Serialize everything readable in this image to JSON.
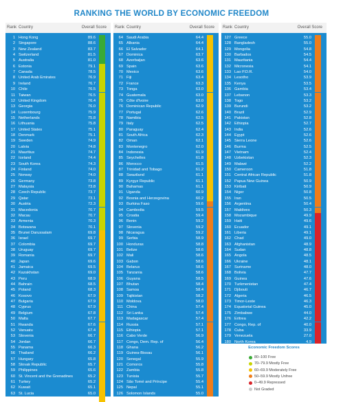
{
  "title": "RANKING THE WORLD BY ECONOMIC FREEDOM",
  "headers": {
    "rank": "Rank",
    "country": "Country",
    "score": "Overall Score"
  },
  "colors": {
    "free": "#3aaa35",
    "mostly_free": "#c8d400",
    "moderately_free": "#f6c200",
    "mostly_unfree": "#ef7d1a",
    "repressed": "#d9232a",
    "not_graded": "#cccccc",
    "panel": "#1b8bd0"
  },
  "legend": {
    "title": "Economic Freedom Scores",
    "items": [
      {
        "label": "80–100  Free",
        "key": "free"
      },
      {
        "label": "70–79.9  Mostly Free",
        "key": "mostly_free"
      },
      {
        "label": "60–69.9  Moderately Free",
        "key": "moderately_free"
      },
      {
        "label": "50–59.9  Mostly Unfree",
        "key": "mostly_unfree"
      },
      {
        "label": "0–49.9  Repressed",
        "key": "repressed"
      },
      {
        "label": "Not Graded",
        "key": "not_graded"
      }
    ]
  },
  "chart_data": {
    "type": "table",
    "title": "RANKING THE WORLD BY ECONOMIC FREEDOM",
    "columns": [
      "Rank",
      "Country",
      "Overall Score"
    ],
    "rows": [
      [
        "1",
        "Hong Kong",
        "89.6"
      ],
      [
        "2",
        "Singapore",
        "88.6"
      ],
      [
        "3",
        "New Zealand",
        "83.7"
      ],
      [
        "4",
        "Switzerland",
        "81.5"
      ],
      [
        "5",
        "Australia",
        "81.0"
      ],
      [
        "6",
        "Estonia",
        "79.1"
      ],
      [
        "7",
        "Canada",
        "78.5"
      ],
      [
        "8",
        "United Arab Emirates",
        "76.9"
      ],
      [
        "9",
        "Ireland",
        "76.7"
      ],
      [
        "10",
        "Chile",
        "76.5"
      ],
      [
        "11",
        "Taiwan",
        "76.5"
      ],
      [
        "12",
        "United Kingdom",
        "76.4"
      ],
      [
        "13",
        "Georgia",
        "76.0"
      ],
      [
        "14",
        "Luxembourg",
        "75.9"
      ],
      [
        "15",
        "Netherlands",
        "75.8"
      ],
      [
        "16",
        "Lithuania",
        "75.8"
      ],
      [
        "17",
        "United States",
        "75.1"
      ],
      [
        "18",
        "Denmark",
        "75.1"
      ],
      [
        "19",
        "Sweden",
        "74.9"
      ],
      [
        "20",
        "Latvia",
        "74.8"
      ],
      [
        "21",
        "Mauritius",
        "74.7"
      ],
      [
        "22",
        "Iceland",
        "74.4"
      ],
      [
        "23",
        "South Korea",
        "74.3"
      ],
      [
        "24",
        "Finland",
        "74.0"
      ],
      [
        "25",
        "Norway",
        "74.0"
      ],
      [
        "26",
        "Germany",
        "73.8"
      ],
      [
        "27",
        "Malaysia",
        "73.8"
      ],
      [
        "28",
        "Czech Republic",
        "73.7"
      ],
      [
        "29",
        "Qatar",
        "73.1"
      ],
      [
        "30",
        "Austria",
        "72.3"
      ],
      [
        "31",
        "Macedonia",
        "70.7"
      ],
      [
        "32",
        "Macau",
        "70.7"
      ],
      [
        "33",
        "Armenia",
        "70.3"
      ],
      [
        "34",
        "Botswana",
        "70.1"
      ],
      [
        "35",
        "Brunei Darussalam",
        "69.8"
      ],
      [
        "36",
        "Israel",
        "69.7"
      ],
      [
        "37",
        "Colombia",
        "69.7"
      ],
      [
        "38",
        "Uruguay",
        "69.7"
      ],
      [
        "39",
        "Romania",
        "69.7"
      ],
      [
        "40",
        "Japan",
        "69.6"
      ],
      [
        "41",
        "Jamaica",
        "69.5"
      ],
      [
        "42",
        "Kazakhstan",
        "69.0"
      ],
      [
        "43",
        "Peru",
        "68.9"
      ],
      [
        "44",
        "Bahrain",
        "68.5"
      ],
      [
        "45",
        "Poland",
        "68.3"
      ],
      [
        "46",
        "Kosovo",
        "67.9"
      ],
      [
        "47",
        "Bulgaria",
        "67.9"
      ],
      [
        "48",
        "Cyprus",
        "67.9"
      ],
      [
        "49",
        "Belgium",
        "67.8"
      ],
      [
        "50",
        "Malta",
        "67.7"
      ],
      [
        "51",
        "Rwanda",
        "67.6"
      ],
      [
        "52",
        "Vanuatu",
        "67.4"
      ],
      [
        "53",
        "Slovenia",
        "66.7"
      ],
      [
        "54",
        "Jordan",
        "66.7"
      ],
      [
        "55",
        "Panama",
        "66.3"
      ],
      [
        "56",
        "Thailand",
        "66.2"
      ],
      [
        "57",
        "Hungary",
        "65.8"
      ],
      [
        "58",
        "Slovak Republic",
        "65.7"
      ],
      [
        "59",
        "Philippines",
        "65.6"
      ],
      [
        "60",
        "St. Vincent and the Grenadines",
        "65.2"
      ],
      [
        "61",
        "Turkey",
        "65.2"
      ],
      [
        "62",
        "Kuwait",
        "65.1"
      ],
      [
        "63",
        "St. Lucia",
        "65.0"
      ],
      [
        "64",
        "Costa Rica",
        "65.0"
      ],
      [
        "64",
        "Saudi Arabia",
        "64.4"
      ],
      [
        "65",
        "Albania",
        "64.4"
      ],
      [
        "66",
        "El Salvador",
        "64.1"
      ],
      [
        "67",
        "Dominica",
        "63.7"
      ],
      [
        "68",
        "Azerbaijan",
        "63.6"
      ],
      [
        "69",
        "Spain",
        "63.6"
      ],
      [
        "70",
        "Mexico",
        "63.6"
      ],
      [
        "71",
        "Fiji",
        "63.4"
      ],
      [
        "72",
        "France",
        "63.3"
      ],
      [
        "73",
        "Tonga",
        "63.0"
      ],
      [
        "74",
        "Guatemala",
        "63.0"
      ],
      [
        "75",
        "Côte d'Ivoire",
        "63.0"
      ],
      [
        "76",
        "Dominican Republic",
        "62.9"
      ],
      [
        "77",
        "Portugal",
        "62.6"
      ],
      [
        "78",
        "Namibia",
        "62.5"
      ],
      [
        "79",
        "Italy",
        "62.5"
      ],
      [
        "80",
        "Paraguay",
        "62.4"
      ],
      [
        "81",
        "South Africa",
        "62.3"
      ],
      [
        "82",
        "Oman",
        "62.1"
      ],
      [
        "83",
        "Montenegro",
        "62.0"
      ],
      [
        "84",
        "Indonesia",
        "61.9"
      ],
      [
        "85",
        "Seychelles",
        "61.8"
      ],
      [
        "86",
        "Morocco",
        "61.5"
      ],
      [
        "87",
        "Trinidad and Tobago",
        "61.2"
      ],
      [
        "88",
        "Swaziland",
        "61.1"
      ],
      [
        "89",
        "Kyrgyz Republic",
        "61.1"
      ],
      [
        "90",
        "Bahamas",
        "61.1"
      ],
      [
        "91",
        "Uganda",
        "60.9"
      ],
      [
        "92",
        "Bosnia and Herzegovina",
        "60.2"
      ],
      [
        "93",
        "Burkina Faso",
        "59.6"
      ],
      [
        "94",
        "Cambodia",
        "59.5"
      ],
      [
        "95",
        "Croatia",
        "59.4"
      ],
      [
        "96",
        "Benin",
        "59.2"
      ],
      [
        "97",
        "Slovenia",
        "59.2"
      ],
      [
        "98",
        "Nicaragua",
        "59.2"
      ],
      [
        "99",
        "Serbia",
        "58.9"
      ],
      [
        "100",
        "Honduras",
        "58.8"
      ],
      [
        "101",
        "Belize",
        "58.6"
      ],
      [
        "102",
        "Mali",
        "58.6"
      ],
      [
        "103",
        "Gabon",
        "58.6"
      ],
      [
        "104",
        "Belarus",
        "58.6"
      ],
      [
        "105",
        "Tanzania",
        "58.6"
      ],
      [
        "106",
        "Guyana",
        "58.5"
      ],
      [
        "107",
        "Bhutan",
        "58.4"
      ],
      [
        "108",
        "Samoa",
        "58.4"
      ],
      [
        "109",
        "Tajikistan",
        "58.2"
      ],
      [
        "110",
        "Moldova",
        "58.0"
      ],
      [
        "111",
        "China",
        "57.4"
      ],
      [
        "112",
        "Sri Lanka",
        "57.4"
      ],
      [
        "113",
        "Madagascar",
        "57.4"
      ],
      [
        "114",
        "Russia",
        "57.1"
      ],
      [
        "115",
        "Ethiopia",
        "57.1"
      ],
      [
        "116",
        "Cabo Verde",
        "56.9"
      ],
      [
        "117",
        "Congo, Dem. Rep. of",
        "56.4"
      ],
      [
        "118",
        "Ghana",
        "56.2"
      ],
      [
        "119",
        "Guinea-Bissau",
        "56.1"
      ],
      [
        "120",
        "Senegal",
        "55.9"
      ],
      [
        "121",
        "Comoros",
        "55.8"
      ],
      [
        "122",
        "Zambia",
        "55.8"
      ],
      [
        "123",
        "Tunisia",
        "55.7"
      ],
      [
        "124",
        "São Tomé and Príncipe",
        "55.4"
      ],
      [
        "125",
        "Nepal",
        "55.1"
      ],
      [
        "126",
        "Solomon Islands",
        "55.0"
      ],
      [
        "127",
        "Greece",
        "55.0"
      ],
      [
        "128",
        "Bangladesh",
        "55.0"
      ],
      [
        "129",
        "Mongolia",
        "54.8"
      ],
      [
        "130",
        "Barbados",
        "54.5"
      ],
      [
        "131",
        "Mauritania",
        "54.4"
      ],
      [
        "132",
        "Micronesia",
        "54.1"
      ],
      [
        "133",
        "Lao P.D.R.",
        "54.0"
      ],
      [
        "134",
        "Lesotho",
        "53.9"
      ],
      [
        "135",
        "Kenya",
        "53.5"
      ],
      [
        "136",
        "Gambia",
        "53.4"
      ],
      [
        "137",
        "Lebanon",
        "53.3"
      ],
      [
        "138",
        "Togo",
        "53.2"
      ],
      [
        "139",
        "Burundi",
        "53.2"
      ],
      [
        "140",
        "Brazil",
        "52.9"
      ],
      [
        "141",
        "Pakistan",
        "52.8"
      ],
      [
        "142",
        "Ethiopia",
        "52.7"
      ],
      [
        "143",
        "India",
        "52.6"
      ],
      [
        "144",
        "Egypt",
        "52.6"
      ],
      [
        "145",
        "Sierra Leone",
        "52.6"
      ],
      [
        "146",
        "Burma",
        "52.5"
      ],
      [
        "147",
        "Vietnam",
        "52.4"
      ],
      [
        "148",
        "Uzbekistan",
        "52.3"
      ],
      [
        "149",
        "Malawi",
        "52.2"
      ],
      [
        "150",
        "Cameroon",
        "51.8"
      ],
      [
        "151",
        "Central African Republic",
        "51.8"
      ],
      [
        "152",
        "Papua New Guinea",
        "50.9"
      ],
      [
        "153",
        "Kiribati",
        "50.9"
      ],
      [
        "154",
        "Niger",
        "50.8"
      ],
      [
        "155",
        "Iran",
        "50.5"
      ],
      [
        "156",
        "Argentina",
        "50.4"
      ],
      [
        "157",
        "Maldives",
        "50.3"
      ],
      [
        "158",
        "Mozambique",
        "49.9"
      ],
      [
        "159",
        "Haiti",
        "49.6"
      ],
      [
        "160",
        "Ecuador",
        "49.1"
      ],
      [
        "161",
        "Liberia",
        "49.1"
      ],
      [
        "162",
        "Chad",
        "49.0"
      ],
      [
        "163",
        "Afghanistan",
        "48.9"
      ],
      [
        "164",
        "Sudan",
        "48.8"
      ],
      [
        "165",
        "Angola",
        "48.5"
      ],
      [
        "166",
        "Ukraine",
        "48.1"
      ],
      [
        "167",
        "Suriname",
        "48.0"
      ],
      [
        "168",
        "Bolivia",
        "47.7"
      ],
      [
        "169",
        "Guinea",
        "47.6"
      ],
      [
        "170",
        "Turkmenistan",
        "47.4"
      ],
      [
        "171",
        "Djibouti",
        "46.7"
      ],
      [
        "172",
        "Algeria",
        "46.5"
      ],
      [
        "173",
        "Timor-Leste",
        "46.3"
      ],
      [
        "174",
        "Equatorial Guinea",
        "45.0"
      ],
      [
        "175",
        "Zimbabwe",
        "44.0"
      ],
      [
        "176",
        "Eritrea",
        "42.2"
      ],
      [
        "177",
        "Congo, Rep. of",
        "40.0"
      ],
      [
        "178",
        "Cuba",
        "33.9"
      ],
      [
        "179",
        "Venezuela",
        "27.0"
      ],
      [
        "180",
        "North Korea",
        "4.9"
      ]
    ]
  }
}
